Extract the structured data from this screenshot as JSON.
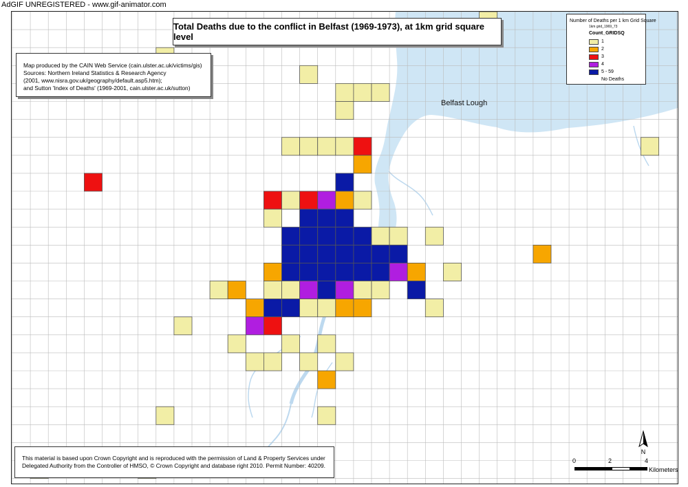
{
  "watermark": "AdGIF UNREGISTERED - www.gif-animator.com",
  "title": "Total Deaths due to the conflict in Belfast (1969-1973), at 1km grid square level",
  "credits": {
    "lines": [
      "Map produced by the CAIN Web Service (cain.ulster.ac.uk/victims/gis)",
      "Sources: Northern Ireland Statistics & Research Agency",
      "(2001, www.nisra.gov.uk/geography/default.asp5.htm);",
      "and Sutton 'Index of Deaths' (1969-2001, cain.ulster.ac.uk/sutton)"
    ]
  },
  "copyright": {
    "lines": [
      "This material is based upon Crown Copyright and is reproduced with the permission of Land & Property Services under",
      "Delegated Authority from the Controller of HMSO, © Crown Copyright and database right 2010. Permit Number: 40209."
    ]
  },
  "legend": {
    "title": "Number of Deaths per 1 km Grid Square",
    "layer": "1km grid_1969_73",
    "field": "Count_GRIDSQ",
    "items": [
      {
        "label": "1",
        "color": "#f2eea6"
      },
      {
        "label": "2",
        "color": "#f7a600"
      },
      {
        "label": "3",
        "color": "#ee1111"
      },
      {
        "label": "4",
        "color": "#b01ee0"
      },
      {
        "label": "5 - 59",
        "color": "#0a1aa6"
      },
      {
        "label": "No Deaths",
        "color": "#ffffff"
      }
    ]
  },
  "lough_label": "Belfast Lough",
  "north_label": "N",
  "scale": {
    "ticks": [
      "0",
      "2",
      "4"
    ],
    "unit": "Kilometers"
  },
  "colors": {
    "water": "#cfe6f5",
    "grid": "#bbbbbb",
    "cell_border": "#555555"
  },
  "grid_cells": [
    {
      "col": 26,
      "row": 0,
      "cat": 1
    },
    {
      "col": 8,
      "row": 2,
      "cat": 1
    },
    {
      "col": 16,
      "row": 3,
      "cat": 1
    },
    {
      "col": 18,
      "row": 4,
      "cat": 1
    },
    {
      "col": 19,
      "row": 4,
      "cat": 1
    },
    {
      "col": 20,
      "row": 4,
      "cat": 1
    },
    {
      "col": 18,
      "row": 5,
      "cat": 1
    },
    {
      "col": 15,
      "row": 7,
      "cat": 1
    },
    {
      "col": 16,
      "row": 7,
      "cat": 1
    },
    {
      "col": 17,
      "row": 7,
      "cat": 1
    },
    {
      "col": 18,
      "row": 7,
      "cat": 1
    },
    {
      "col": 19,
      "row": 7,
      "cat": 3
    },
    {
      "col": 35,
      "row": 7,
      "cat": 1
    },
    {
      "col": 19,
      "row": 8,
      "cat": 2
    },
    {
      "col": 4,
      "row": 9,
      "cat": 3
    },
    {
      "col": 18,
      "row": 9,
      "cat": 5
    },
    {
      "col": 14,
      "row": 10,
      "cat": 3
    },
    {
      "col": 15,
      "row": 10,
      "cat": 1
    },
    {
      "col": 16,
      "row": 10,
      "cat": 3
    },
    {
      "col": 17,
      "row": 10,
      "cat": 4
    },
    {
      "col": 18,
      "row": 10,
      "cat": 2
    },
    {
      "col": 19,
      "row": 10,
      "cat": 1
    },
    {
      "col": 14,
      "row": 11,
      "cat": 1
    },
    {
      "col": 16,
      "row": 11,
      "cat": 5
    },
    {
      "col": 17,
      "row": 11,
      "cat": 5
    },
    {
      "col": 18,
      "row": 11,
      "cat": 5
    },
    {
      "col": 15,
      "row": 12,
      "cat": 5
    },
    {
      "col": 16,
      "row": 12,
      "cat": 5
    },
    {
      "col": 17,
      "row": 12,
      "cat": 5
    },
    {
      "col": 18,
      "row": 12,
      "cat": 5
    },
    {
      "col": 19,
      "row": 12,
      "cat": 5
    },
    {
      "col": 20,
      "row": 12,
      "cat": 1
    },
    {
      "col": 21,
      "row": 12,
      "cat": 1
    },
    {
      "col": 23,
      "row": 12,
      "cat": 1
    },
    {
      "col": 15,
      "row": 13,
      "cat": 5
    },
    {
      "col": 16,
      "row": 13,
      "cat": 5
    },
    {
      "col": 17,
      "row": 13,
      "cat": 5
    },
    {
      "col": 18,
      "row": 13,
      "cat": 5
    },
    {
      "col": 19,
      "row": 13,
      "cat": 5
    },
    {
      "col": 20,
      "row": 13,
      "cat": 5
    },
    {
      "col": 21,
      "row": 13,
      "cat": 5
    },
    {
      "col": 29,
      "row": 13,
      "cat": 2
    },
    {
      "col": 14,
      "row": 14,
      "cat": 2
    },
    {
      "col": 15,
      "row": 14,
      "cat": 5
    },
    {
      "col": 16,
      "row": 14,
      "cat": 5
    },
    {
      "col": 17,
      "row": 14,
      "cat": 5
    },
    {
      "col": 18,
      "row": 14,
      "cat": 5
    },
    {
      "col": 19,
      "row": 14,
      "cat": 5
    },
    {
      "col": 20,
      "row": 14,
      "cat": 5
    },
    {
      "col": 21,
      "row": 14,
      "cat": 4
    },
    {
      "col": 22,
      "row": 14,
      "cat": 2
    },
    {
      "col": 24,
      "row": 14,
      "cat": 1
    },
    {
      "col": 11,
      "row": 15,
      "cat": 1
    },
    {
      "col": 12,
      "row": 15,
      "cat": 2
    },
    {
      "col": 14,
      "row": 15,
      "cat": 1
    },
    {
      "col": 15,
      "row": 15,
      "cat": 1
    },
    {
      "col": 16,
      "row": 15,
      "cat": 4
    },
    {
      "col": 17,
      "row": 15,
      "cat": 5
    },
    {
      "col": 18,
      "row": 15,
      "cat": 4
    },
    {
      "col": 19,
      "row": 15,
      "cat": 1
    },
    {
      "col": 20,
      "row": 15,
      "cat": 1
    },
    {
      "col": 22,
      "row": 15,
      "cat": 5
    },
    {
      "col": 13,
      "row": 16,
      "cat": 2
    },
    {
      "col": 14,
      "row": 16,
      "cat": 5
    },
    {
      "col": 15,
      "row": 16,
      "cat": 5
    },
    {
      "col": 16,
      "row": 16,
      "cat": 1
    },
    {
      "col": 17,
      "row": 16,
      "cat": 1
    },
    {
      "col": 18,
      "row": 16,
      "cat": 2
    },
    {
      "col": 19,
      "row": 16,
      "cat": 2
    },
    {
      "col": 23,
      "row": 16,
      "cat": 1
    },
    {
      "col": 9,
      "row": 17,
      "cat": 1
    },
    {
      "col": 13,
      "row": 17,
      "cat": 4
    },
    {
      "col": 14,
      "row": 17,
      "cat": 3
    },
    {
      "col": 12,
      "row": 18,
      "cat": 1
    },
    {
      "col": 15,
      "row": 18,
      "cat": 1
    },
    {
      "col": 17,
      "row": 18,
      "cat": 1
    },
    {
      "col": 13,
      "row": 19,
      "cat": 1
    },
    {
      "col": 14,
      "row": 19,
      "cat": 1
    },
    {
      "col": 16,
      "row": 19,
      "cat": 1
    },
    {
      "col": 18,
      "row": 19,
      "cat": 1
    },
    {
      "col": 17,
      "row": 20,
      "cat": 2
    },
    {
      "col": 8,
      "row": 22,
      "cat": 1
    },
    {
      "col": 17,
      "row": 22,
      "cat": 1
    },
    {
      "col": 1,
      "row": 25,
      "cat": 1
    },
    {
      "col": 7,
      "row": 25,
      "cat": 1
    }
  ]
}
